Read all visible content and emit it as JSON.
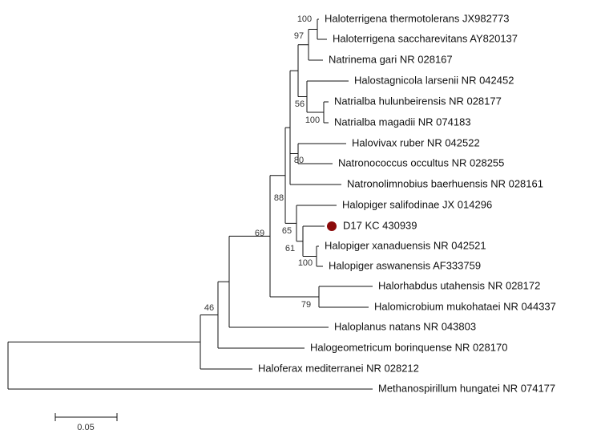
{
  "leaves": [
    "Haloterrigena thermotolerans JX982773",
    "Haloterrigena saccharevitans AY820137",
    "Natrinema gari NR 028167",
    "Halostagnicola larsenii NR 042452",
    "Natrialba hulunbeirensis NR 028177",
    "Natrialba magadii NR 074183",
    "Halovivax ruber NR 042522",
    "Natronococcus occultus NR 028255",
    "Natronolimnobius baerhuensis NR 028161",
    "Halopiger salifodinae JX 014296",
    "D17 KC 430939",
    "Halopiger xanaduensis NR 042521",
    "Halopiger aswanensis AF333759",
    "Halorhabdus utahensis NR 028172",
    "Halomicrobium mukohataei NR 044337",
    "Haloplanus natans NR 043803",
    "Halogeometricum borinquense NR 028170",
    "Haloferax mediterranei NR 028212",
    "Methanospirillum hungatei NR 074177"
  ],
  "bootstrap": [
    100,
    97,
    100,
    56,
    80,
    88,
    65,
    61,
    100,
    79,
    69,
    46
  ],
  "scale_bar": "0.05"
}
